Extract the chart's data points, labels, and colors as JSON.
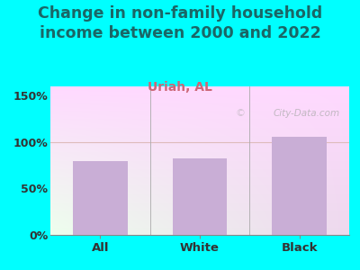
{
  "title": "Change in non-family household\nincome between 2000 and 2022",
  "subtitle": "Uriah, AL",
  "categories": [
    "All",
    "White",
    "Black"
  ],
  "values": [
    80,
    82,
    106
  ],
  "bar_color": "#c9aed6",
  "title_fontsize": 12.5,
  "subtitle_fontsize": 10,
  "subtitle_color": "#cc6677",
  "title_color": "#1a6666",
  "tick_label_color": "#333333",
  "ylim": [
    0,
    160
  ],
  "yticks": [
    0,
    50,
    100,
    150
  ],
  "ytick_labels": [
    "0%",
    "50%",
    "100%",
    "150%"
  ],
  "background_outer": "#00ffff",
  "grid_line_color": "#ddbbbb",
  "watermark": "City-Data.com",
  "bar_width": 0.55
}
